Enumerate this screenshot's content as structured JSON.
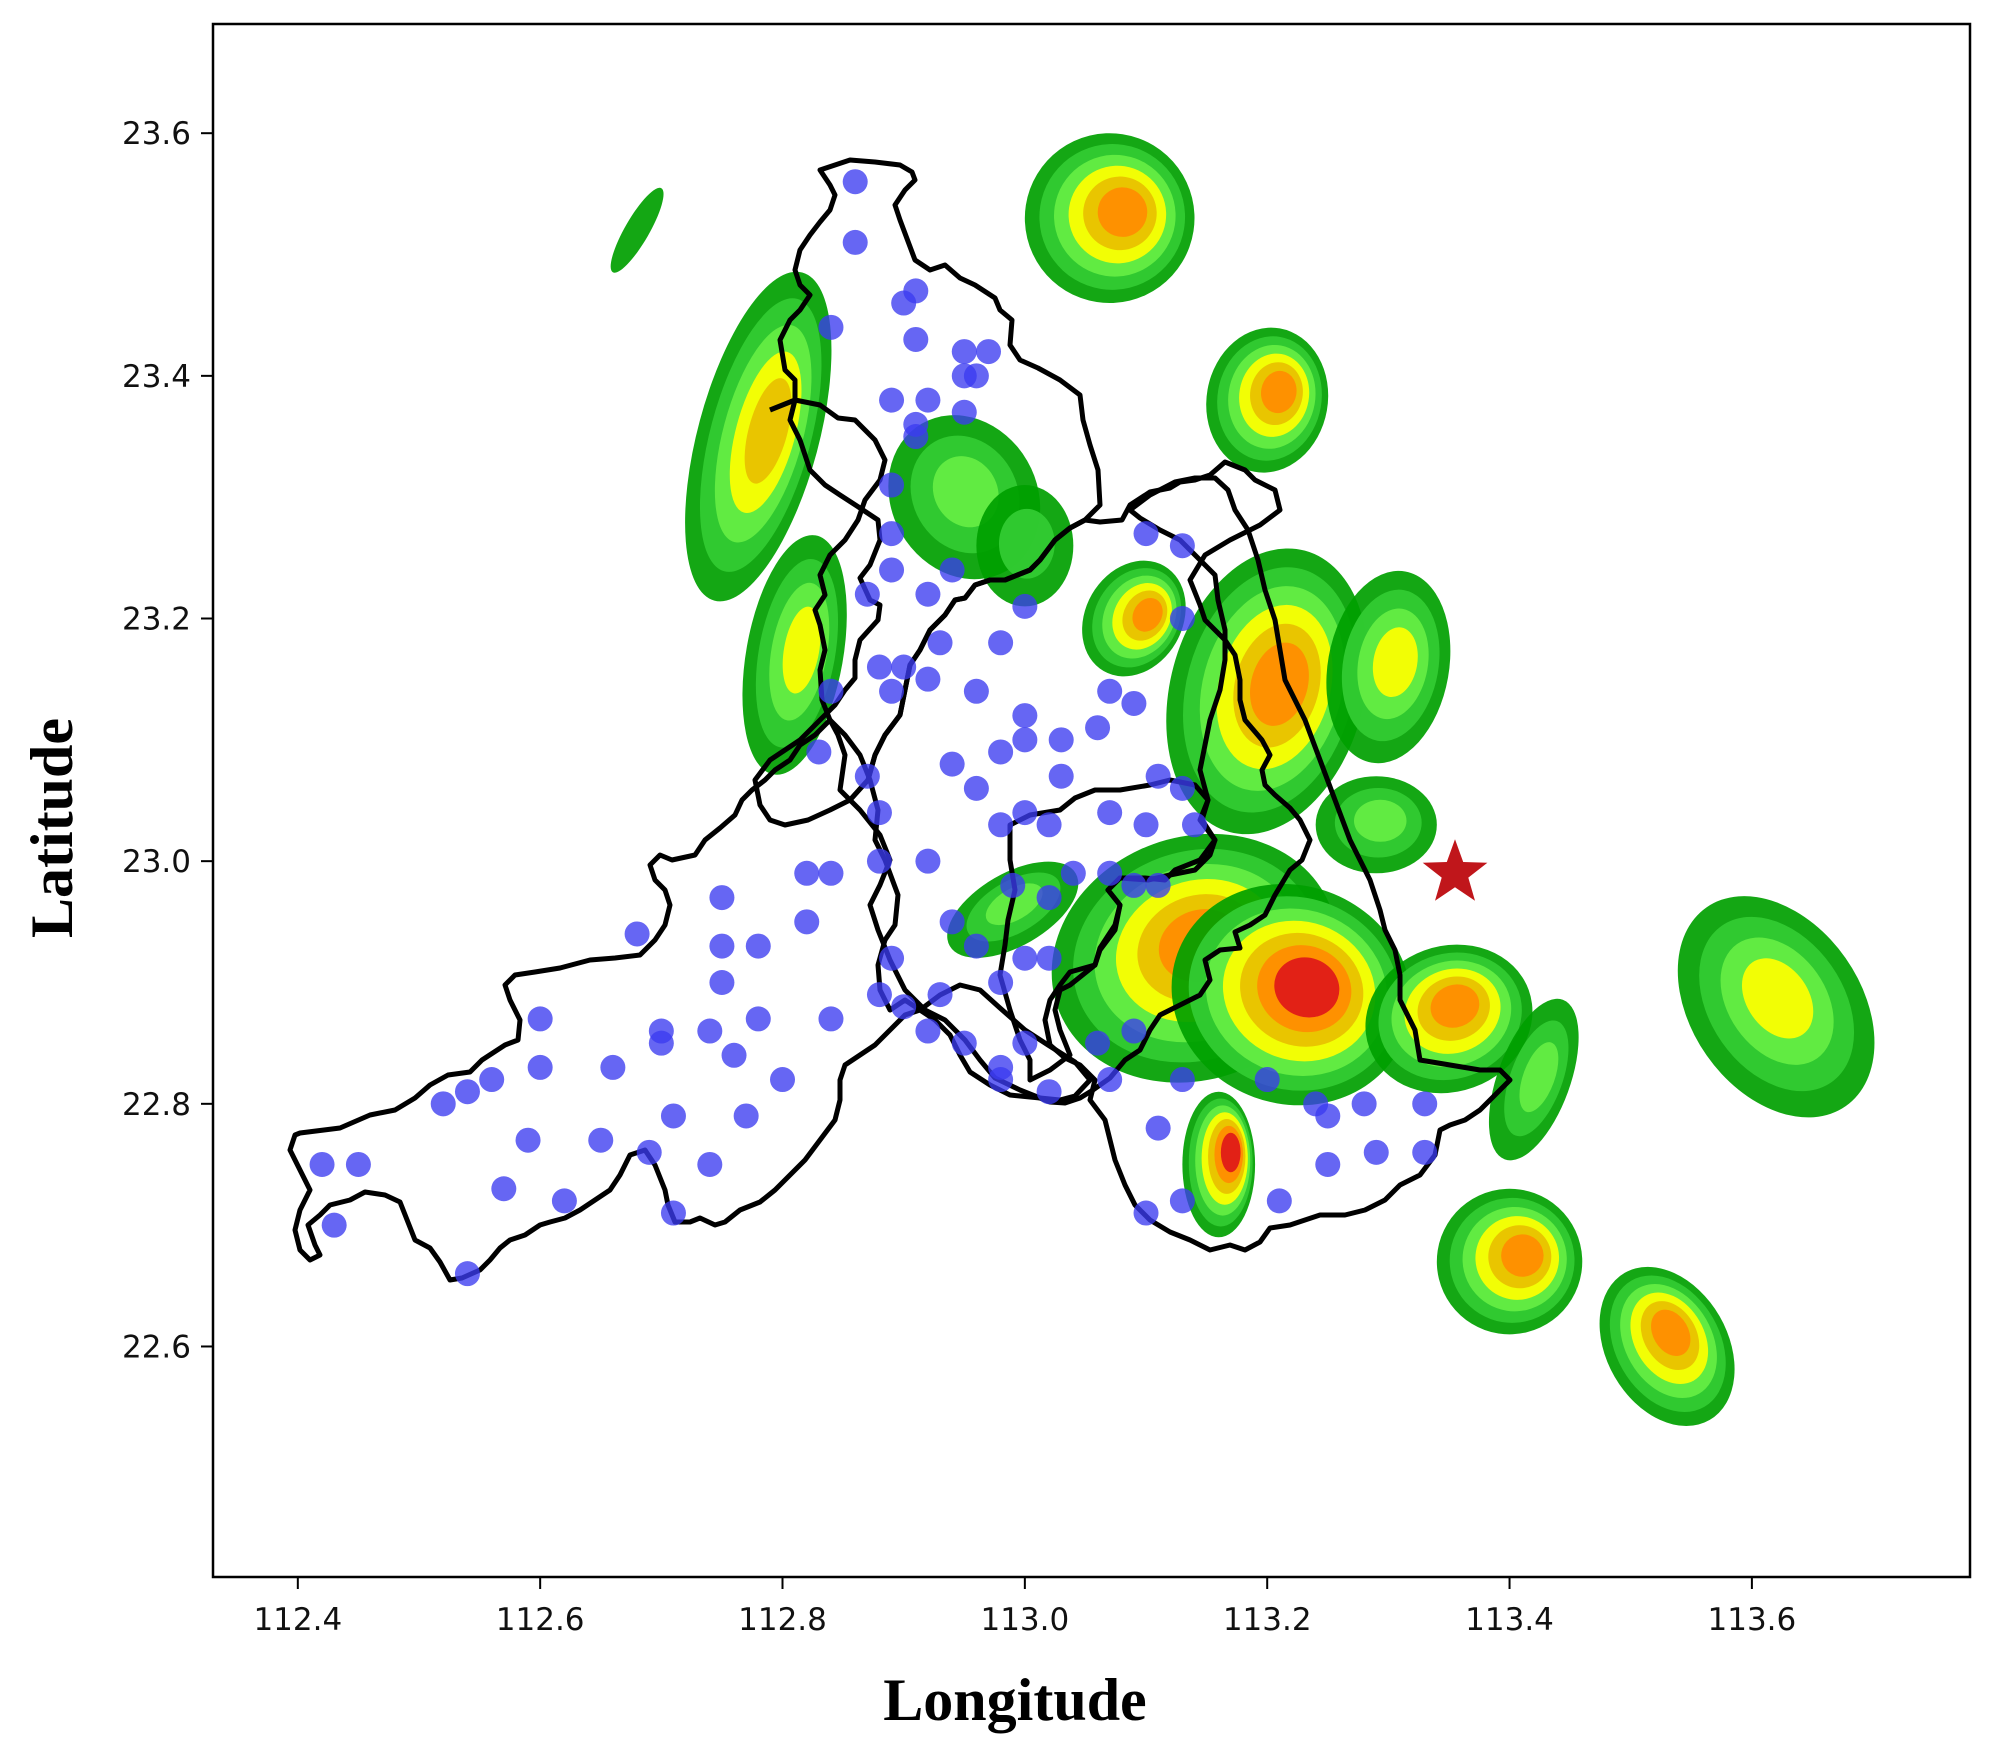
{
  "chart_data": {
    "type": "scatter",
    "title": "",
    "xlabel": "Longitude",
    "ylabel": "Latitude",
    "xlim": [
      112.33,
      113.78
    ],
    "ylim": [
      22.41,
      23.69
    ],
    "x_ticks": [
      "112.4",
      "112.6",
      "112.8",
      "113.0",
      "113.2",
      "113.4",
      "113.6"
    ],
    "y_ticks": [
      "22.6",
      "22.8",
      "23.0",
      "23.2",
      "23.4",
      "23.6"
    ],
    "grid": false,
    "legend": "none",
    "colors": {
      "station": "#3b3bf0",
      "boundary": "#000000",
      "marker_star": "#c0161b",
      "radar": [
        "#00a000",
        "#33cc33",
        "#66ee44",
        "#ffff00",
        "#e8c000",
        "#ff8c00",
        "#e01818",
        "#00e0e0"
      ]
    },
    "star_marker": {
      "lon": 113.355,
      "lat": 22.99
    },
    "stations": [
      [
        112.86,
        23.56
      ],
      [
        112.86,
        23.51
      ],
      [
        112.91,
        23.47
      ],
      [
        112.9,
        23.46
      ],
      [
        112.84,
        23.44
      ],
      [
        112.91,
        23.43
      ],
      [
        112.95,
        23.42
      ],
      [
        112.97,
        23.42
      ],
      [
        112.95,
        23.4
      ],
      [
        112.96,
        23.4
      ],
      [
        112.89,
        23.38
      ],
      [
        112.92,
        23.38
      ],
      [
        112.95,
        23.37
      ],
      [
        112.91,
        23.36
      ],
      [
        112.91,
        23.35
      ],
      [
        112.89,
        23.31
      ],
      [
        112.89,
        23.27
      ],
      [
        113.1,
        23.27
      ],
      [
        113.13,
        23.26
      ],
      [
        112.89,
        23.24
      ],
      [
        112.94,
        23.24
      ],
      [
        112.87,
        23.22
      ],
      [
        112.92,
        23.22
      ],
      [
        113.0,
        23.21
      ],
      [
        113.13,
        23.2
      ],
      [
        112.93,
        23.18
      ],
      [
        112.88,
        23.16
      ],
      [
        112.9,
        23.16
      ],
      [
        112.98,
        23.18
      ],
      [
        112.89,
        23.14
      ],
      [
        112.96,
        23.14
      ],
      [
        112.92,
        23.15
      ],
      [
        113.07,
        23.14
      ],
      [
        113.0,
        23.12
      ],
      [
        113.09,
        23.13
      ],
      [
        112.84,
        23.14
      ],
      [
        113.03,
        23.1
      ],
      [
        113.0,
        23.1
      ],
      [
        113.06,
        23.11
      ],
      [
        112.98,
        23.09
      ],
      [
        112.83,
        23.09
      ],
      [
        112.87,
        23.07
      ],
      [
        112.94,
        23.08
      ],
      [
        113.03,
        23.07
      ],
      [
        112.96,
        23.06
      ],
      [
        113.11,
        23.07
      ],
      [
        113.13,
        23.06
      ],
      [
        112.88,
        23.04
      ],
      [
        112.98,
        23.03
      ],
      [
        113.0,
        23.04
      ],
      [
        113.02,
        23.03
      ],
      [
        113.07,
        23.04
      ],
      [
        113.1,
        23.03
      ],
      [
        113.14,
        23.03
      ],
      [
        112.88,
        23.0
      ],
      [
        112.92,
        23.0
      ],
      [
        112.82,
        22.99
      ],
      [
        112.84,
        22.99
      ],
      [
        113.04,
        22.99
      ],
      [
        113.07,
        22.99
      ],
      [
        113.09,
        22.98
      ],
      [
        112.75,
        22.97
      ],
      [
        112.99,
        22.98
      ],
      [
        113.02,
        22.97
      ],
      [
        113.11,
        22.98
      ],
      [
        112.82,
        22.95
      ],
      [
        112.94,
        22.95
      ],
      [
        112.68,
        22.94
      ],
      [
        112.78,
        22.93
      ],
      [
        112.89,
        22.92
      ],
      [
        112.96,
        22.93
      ],
      [
        113.0,
        22.92
      ],
      [
        113.02,
        22.92
      ],
      [
        112.75,
        22.93
      ],
      [
        112.75,
        22.9
      ],
      [
        112.93,
        22.89
      ],
      [
        112.9,
        22.88
      ],
      [
        112.88,
        22.89
      ],
      [
        112.98,
        22.9
      ],
      [
        112.6,
        22.87
      ],
      [
        112.74,
        22.86
      ],
      [
        112.78,
        22.87
      ],
      [
        112.84,
        22.87
      ],
      [
        112.92,
        22.86
      ],
      [
        112.7,
        22.85
      ],
      [
        112.7,
        22.86
      ],
      [
        113.06,
        22.85
      ],
      [
        113.09,
        22.86
      ],
      [
        113.0,
        22.85
      ],
      [
        112.95,
        22.85
      ],
      [
        112.56,
        22.82
      ],
      [
        112.6,
        22.83
      ],
      [
        112.76,
        22.84
      ],
      [
        112.8,
        22.82
      ],
      [
        112.66,
        22.83
      ],
      [
        112.98,
        22.83
      ],
      [
        112.98,
        22.82
      ],
      [
        113.07,
        22.82
      ],
      [
        113.02,
        22.81
      ],
      [
        113.13,
        22.82
      ],
      [
        113.2,
        22.82
      ],
      [
        113.24,
        22.8
      ],
      [
        113.28,
        22.8
      ],
      [
        113.33,
        22.8
      ],
      [
        112.52,
        22.8
      ],
      [
        112.54,
        22.81
      ],
      [
        112.71,
        22.79
      ],
      [
        112.77,
        22.79
      ],
      [
        112.65,
        22.77
      ],
      [
        112.59,
        22.77
      ],
      [
        113.11,
        22.78
      ],
      [
        113.25,
        22.79
      ],
      [
        113.29,
        22.76
      ],
      [
        113.33,
        22.76
      ],
      [
        112.42,
        22.75
      ],
      [
        112.45,
        22.75
      ],
      [
        112.69,
        22.76
      ],
      [
        112.74,
        22.75
      ],
      [
        113.25,
        22.75
      ],
      [
        112.57,
        22.73
      ],
      [
        112.62,
        22.72
      ],
      [
        112.71,
        22.71
      ],
      [
        113.13,
        22.72
      ],
      [
        113.21,
        22.72
      ],
      [
        113.1,
        22.71
      ],
      [
        112.43,
        22.7
      ],
      [
        112.54,
        22.66
      ]
    ]
  }
}
